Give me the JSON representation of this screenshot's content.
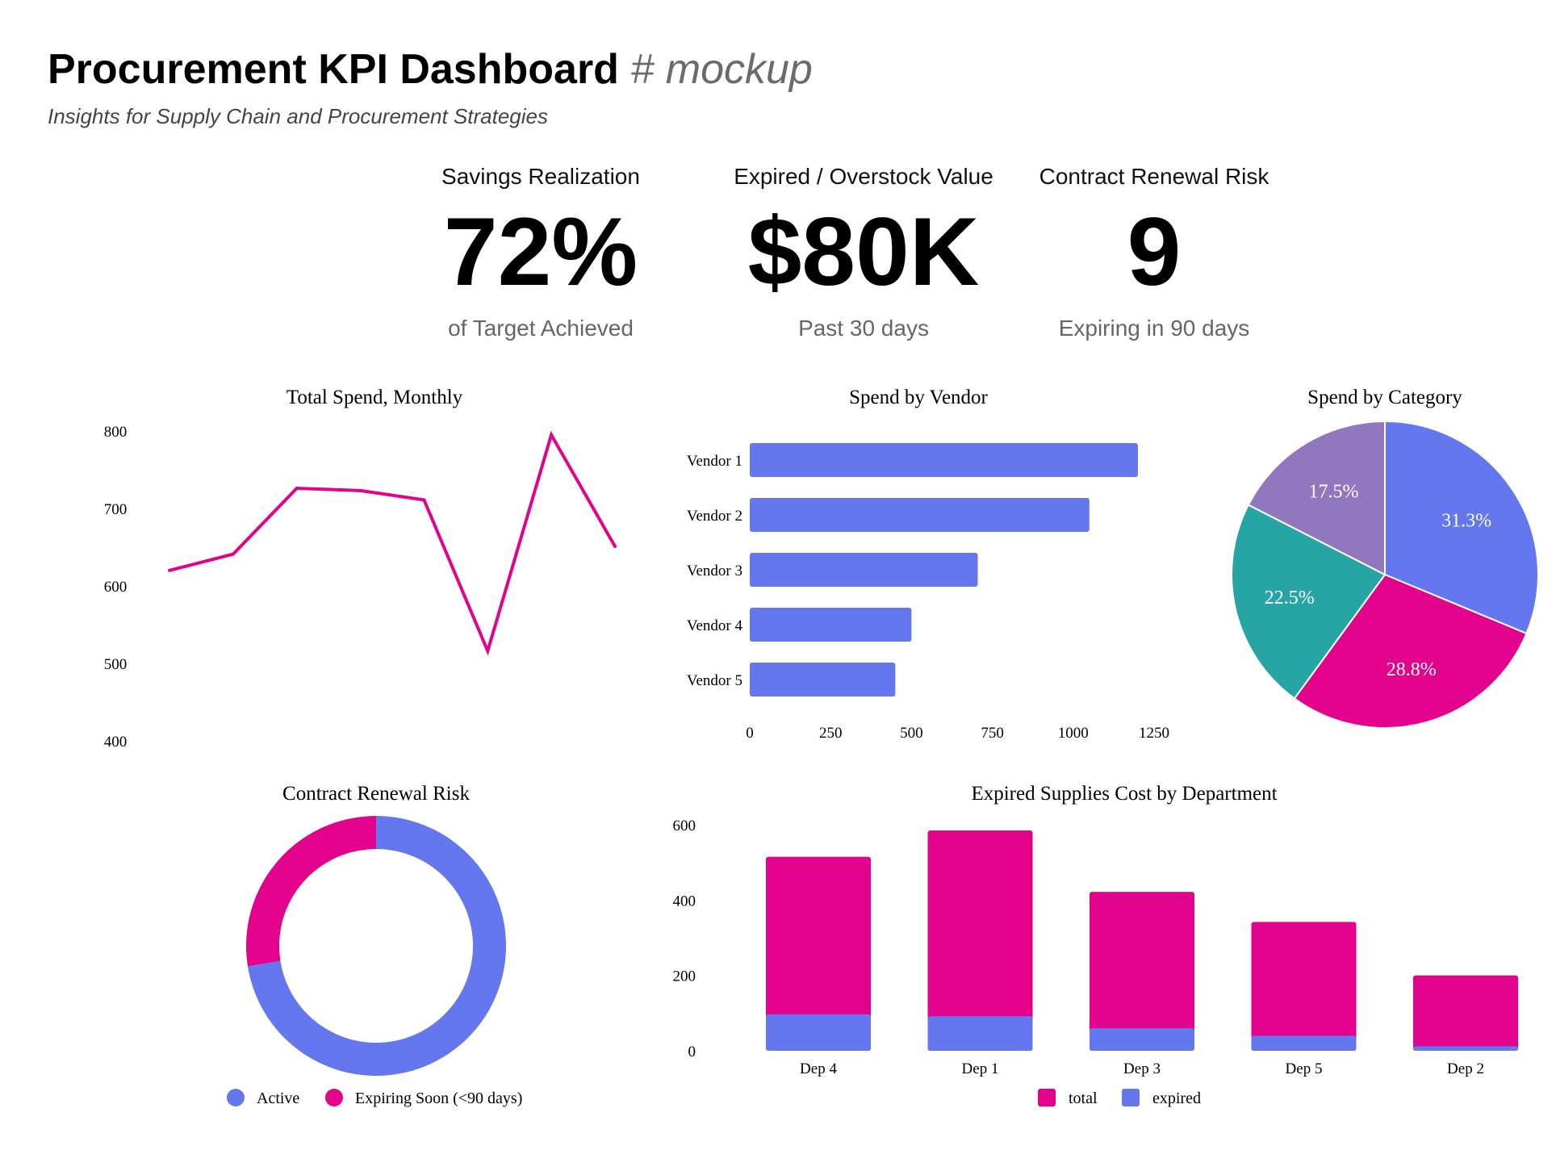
{
  "header": {
    "title": "Procurement KPI Dashboard",
    "title_suffix": "# mockup",
    "subtitle": "Insights for Supply Chain and Procurement Strategies"
  },
  "kpis": [
    {
      "label": "Savings Realization",
      "value": "72%",
      "caption": "of Target Achieved"
    },
    {
      "label": "Expired / Overstock Value",
      "value": "$80K",
      "caption": "Past 30 days"
    },
    {
      "label": "Contract Renewal Risk",
      "value": "9",
      "caption": "Expiring in 90 days"
    }
  ],
  "colors": {
    "blue": "#6477EE",
    "magenta": "#E2028B",
    "teal": "#27A5A4",
    "purple": "#9177BE"
  },
  "chart_data": [
    {
      "id": "total-spend",
      "type": "line",
      "title": "Total Spend, Monthly",
      "x": [
        1,
        2,
        3,
        4,
        5,
        6,
        7,
        8
      ],
      "series": [
        {
          "values": [
            620,
            641,
            726,
            723,
            711,
            516,
            795,
            651
          ],
          "color": "#E2028B"
        }
      ],
      "yticks": [
        400,
        500,
        600,
        700,
        800
      ],
      "ylim": [
        400,
        800
      ],
      "grid": false
    },
    {
      "id": "spend-by-vendor",
      "type": "bar",
      "orientation": "horizontal",
      "title": "Spend by Vendor",
      "categories": [
        "Vendor 1",
        "Vendor 2",
        "Vendor 3",
        "Vendor 4",
        "Vendor 5"
      ],
      "values": [
        1200,
        1050,
        705,
        500,
        450
      ],
      "xticks": [
        0,
        250,
        500,
        750,
        1000,
        1250
      ],
      "xlim": [
        0,
        1250
      ],
      "color": "#6477EE",
      "grid": false
    },
    {
      "id": "spend-by-category",
      "type": "pie",
      "title": "Spend by Category",
      "values": [
        31.3,
        28.8,
        22.5,
        17.5
      ],
      "labels": [
        "31.3%",
        "28.8%",
        "22.5%",
        "17.5%"
      ],
      "colors": [
        "#6477EE",
        "#E2028B",
        "#27A5A4",
        "#9177BE"
      ]
    },
    {
      "id": "contract-renewal-risk",
      "type": "pie",
      "subtype": "donut",
      "title": "Contract Renewal Risk",
      "series": [
        {
          "name": "Active",
          "value": 72.5,
          "color": "#6477EE"
        },
        {
          "name": "Expiring Soon (<90 days)",
          "value": 27.5,
          "color": "#E2028B"
        }
      ],
      "legend": "bottom"
    },
    {
      "id": "expired-supplies-cost",
      "type": "bar",
      "title": "Expired Supplies Cost by Department",
      "categories": [
        "Dep 4",
        "Dep 1",
        "Dep 3",
        "Dep 5",
        "Dep 2"
      ],
      "series": [
        {
          "name": "total",
          "values": [
            515,
            585,
            422,
            342,
            200
          ],
          "color": "#E2028B"
        },
        {
          "name": "expired",
          "values": [
            97,
            92,
            60,
            40,
            12
          ],
          "color": "#6477EE"
        }
      ],
      "yticks": [
        0,
        200,
        400,
        600
      ],
      "ylim": [
        0,
        600
      ],
      "legend": "bottom",
      "grid": false
    }
  ]
}
